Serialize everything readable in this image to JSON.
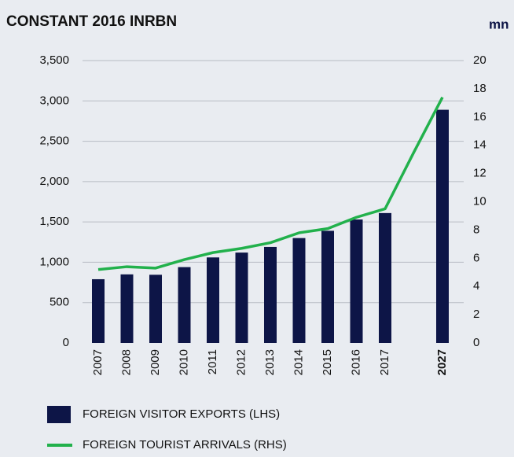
{
  "chart_data": {
    "type": "bar-line",
    "title": "CONSTANT 2016 INRBN",
    "y2_label": "mn",
    "categories": [
      "2007",
      "2008",
      "2009",
      "2010",
      "2011",
      "2012",
      "2013",
      "2014",
      "2015",
      "2016",
      "2017",
      null,
      "2027"
    ],
    "series": [
      {
        "name": "FOREIGN VISITOR EXPORTS (LHS)",
        "type": "bar",
        "color": "#0d1547",
        "values": [
          790,
          850,
          845,
          940,
          1060,
          1120,
          1190,
          1300,
          1390,
          1530,
          1610,
          null,
          2890
        ]
      },
      {
        "name": "FOREIGN TOURIST ARRIVALS (RHS)",
        "type": "line",
        "axis": "y2",
        "color": "#22b14c",
        "values": [
          5.2,
          5.4,
          5.3,
          5.9,
          6.4,
          6.7,
          7.1,
          7.8,
          8.1,
          8.9,
          9.5,
          13.5,
          17.4
        ]
      }
    ],
    "ylim": [
      0,
      3500
    ],
    "yticks": [
      0,
      500,
      {
        "value": 1000,
        "label": "1,000"
      },
      {
        "value": 1500,
        "label": "1,500"
      },
      {
        "value": 2000,
        "label": "2,000"
      },
      {
        "value": 2500,
        "label": "2,500"
      },
      {
        "value": 3000,
        "label": "3,000"
      },
      {
        "value": 3500,
        "label": "3,500"
      }
    ],
    "y2lim": [
      0,
      20
    ],
    "y2ticks": [
      0,
      2,
      4,
      6,
      8,
      10,
      12,
      14,
      16,
      18,
      20
    ],
    "grid": true
  }
}
